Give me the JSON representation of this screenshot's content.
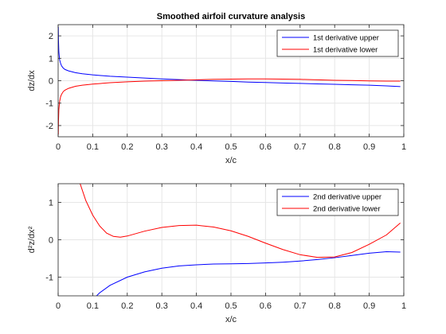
{
  "chart_data": [
    {
      "type": "line",
      "title": "Smoothed airfoil curvature analysis",
      "xlabel": "x/c",
      "ylabel": "dz/dx",
      "xlim": [
        0,
        1
      ],
      "ylim": [
        -2.5,
        2.5
      ],
      "xticks": [
        0,
        0.1,
        0.2,
        0.3,
        0.4,
        0.5,
        0.6,
        0.7,
        0.8,
        0.9,
        1
      ],
      "xtick_labels": [
        "0",
        "0.1",
        "0.2",
        "0.3",
        "0.4",
        "0.5",
        "0.6",
        "0.7",
        "0.8",
        "0.9",
        "1"
      ],
      "yticks": [
        -2,
        -1,
        0,
        1,
        2
      ],
      "ytick_labels": [
        "-2",
        "-1",
        "0",
        "1",
        "2"
      ],
      "grid": true,
      "legend_position": "top-right",
      "series": [
        {
          "name": "1st derivative upper",
          "color": "#0000ff",
          "x": [
            0.0005,
            0.001,
            0.002,
            0.004,
            0.007,
            0.01,
            0.015,
            0.02,
            0.03,
            0.05,
            0.07,
            0.1,
            0.15,
            0.2,
            0.25,
            0.3,
            0.35,
            0.4,
            0.45,
            0.5,
            0.55,
            0.6,
            0.65,
            0.7,
            0.75,
            0.8,
            0.85,
            0.9,
            0.95,
            0.99
          ],
          "y": [
            2.4,
            1.8,
            1.3,
            0.95,
            0.78,
            0.66,
            0.56,
            0.5,
            0.44,
            0.36,
            0.31,
            0.26,
            0.2,
            0.16,
            0.12,
            0.08,
            0.05,
            0.02,
            -0.01,
            -0.03,
            -0.06,
            -0.08,
            -0.1,
            -0.12,
            -0.14,
            -0.16,
            -0.18,
            -0.2,
            -0.23,
            -0.26
          ]
        },
        {
          "name": "1st derivative lower",
          "color": "#ff0000",
          "x": [
            0.0005,
            0.001,
            0.002,
            0.004,
            0.007,
            0.01,
            0.015,
            0.02,
            0.03,
            0.05,
            0.07,
            0.1,
            0.15,
            0.2,
            0.25,
            0.3,
            0.35,
            0.4,
            0.45,
            0.5,
            0.55,
            0.6,
            0.65,
            0.7,
            0.75,
            0.8,
            0.85,
            0.9,
            0.95,
            0.99
          ],
          "y": [
            -2.4,
            -1.8,
            -1.3,
            -0.95,
            -0.72,
            -0.6,
            -0.48,
            -0.42,
            -0.34,
            -0.25,
            -0.2,
            -0.15,
            -0.09,
            -0.05,
            -0.02,
            0.0,
            0.02,
            0.04,
            0.06,
            0.07,
            0.08,
            0.08,
            0.07,
            0.06,
            0.04,
            0.02,
            0.01,
            -0.01,
            -0.02,
            -0.02
          ]
        }
      ]
    },
    {
      "type": "line",
      "title": "",
      "xlabel": "x/c",
      "ylabel": "d²z/dx²",
      "xlim": [
        0,
        1
      ],
      "ylim": [
        -1.5,
        1.5
      ],
      "xticks": [
        0,
        0.1,
        0.2,
        0.3,
        0.4,
        0.5,
        0.6,
        0.7,
        0.8,
        0.9,
        1
      ],
      "xtick_labels": [
        "0",
        "0.1",
        "0.2",
        "0.3",
        "0.4",
        "0.5",
        "0.6",
        "0.7",
        "0.8",
        "0.9",
        "1"
      ],
      "yticks": [
        -1,
        0,
        1
      ],
      "ytick_labels": [
        "-1",
        "0",
        "1"
      ],
      "grid": true,
      "legend_position": "top-right",
      "series": [
        {
          "name": "2nd derivative upper",
          "color": "#0000ff",
          "x": [
            0.1,
            0.12,
            0.15,
            0.2,
            0.25,
            0.3,
            0.35,
            0.4,
            0.45,
            0.5,
            0.55,
            0.6,
            0.65,
            0.7,
            0.75,
            0.8,
            0.85,
            0.9,
            0.95,
            0.99
          ],
          "y": [
            -1.6,
            -1.42,
            -1.22,
            -1.0,
            -0.86,
            -0.76,
            -0.7,
            -0.67,
            -0.65,
            -0.645,
            -0.635,
            -0.62,
            -0.6,
            -0.57,
            -0.53,
            -0.48,
            -0.42,
            -0.36,
            -0.32,
            -0.33
          ]
        },
        {
          "name": "2nd derivative lower",
          "color": "#ff0000",
          "x": [
            0.06,
            0.08,
            0.1,
            0.12,
            0.14,
            0.16,
            0.18,
            0.2,
            0.25,
            0.3,
            0.35,
            0.4,
            0.45,
            0.5,
            0.55,
            0.6,
            0.65,
            0.7,
            0.75,
            0.8,
            0.85,
            0.9,
            0.95,
            0.99
          ],
          "y": [
            1.6,
            1.05,
            0.66,
            0.37,
            0.18,
            0.09,
            0.07,
            0.1,
            0.23,
            0.33,
            0.38,
            0.39,
            0.34,
            0.24,
            0.09,
            -0.09,
            -0.26,
            -0.4,
            -0.47,
            -0.46,
            -0.34,
            -0.12,
            0.13,
            0.45
          ]
        }
      ]
    }
  ]
}
